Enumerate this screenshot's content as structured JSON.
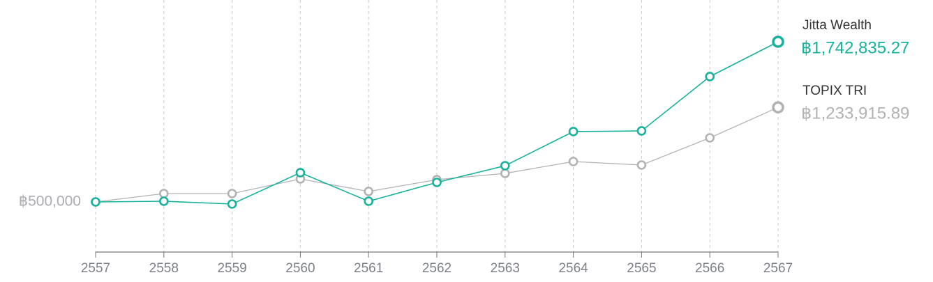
{
  "chart_data": {
    "type": "line",
    "categories": [
      "2557",
      "2558",
      "2559",
      "2560",
      "2561",
      "2562",
      "2563",
      "2564",
      "2565",
      "2566",
      "2567"
    ],
    "series": [
      {
        "name": "TOPIX TRI",
        "color": "#b2b2b4",
        "values": [
          500000,
          564800,
          564800,
          678300,
          581100,
          672900,
          721500,
          813400,
          786400,
          997100,
          1233915.89
        ],
        "value_labels": [
          null,
          null,
          null,
          null,
          null,
          null,
          null,
          null,
          null,
          null,
          "฿1,233,915.89"
        ]
      },
      {
        "name": "Jitta Wealth",
        "color": "#17b29d",
        "values": [
          500000,
          505400,
          483800,
          727000,
          505400,
          651300,
          781000,
          1045800,
          1051200,
          1472700,
          1742835.27
        ],
        "value_labels": [
          null,
          null,
          null,
          null,
          null,
          null,
          null,
          null,
          null,
          null,
          "฿1,742,835.27"
        ]
      }
    ],
    "ylim": [
      110900,
      2067000
    ],
    "yticks": [
      {
        "value": 500000,
        "label": "฿500,000"
      }
    ],
    "grid": true
  }
}
